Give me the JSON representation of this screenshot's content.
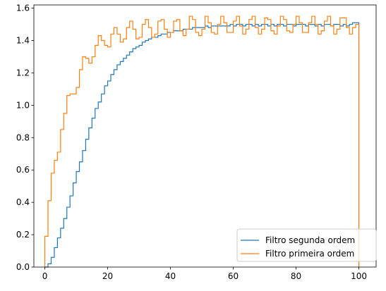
{
  "chart_data": {
    "type": "line",
    "step": true,
    "title": "",
    "xlabel": "",
    "ylabel": "",
    "xlim": [
      -3.5,
      105.5
    ],
    "ylim": [
      0,
      1.62
    ],
    "xticks": [
      0,
      20,
      40,
      60,
      80,
      100
    ],
    "yticks": [
      0.0,
      0.2,
      0.4,
      0.6,
      0.8,
      1.0,
      1.2,
      1.4,
      1.6
    ],
    "xtick_labels": [
      "0",
      "20",
      "40",
      "60",
      "80",
      "100"
    ],
    "ytick_labels": [
      "0.0",
      "0.2",
      "0.4",
      "0.6",
      "0.8",
      "1.0",
      "1.2",
      "1.4",
      "1.6"
    ],
    "grid": false,
    "legend_position": "lower-right",
    "series": [
      {
        "name": "Filtro segunda ordem",
        "color": "#1f77b4",
        "x": [
          0,
          1,
          2,
          3,
          4,
          5,
          6,
          7,
          8,
          9,
          10,
          11,
          12,
          13,
          14,
          15,
          16,
          17,
          18,
          19,
          20,
          21,
          22,
          23,
          24,
          25,
          26,
          27,
          28,
          29,
          30,
          31,
          32,
          33,
          34,
          35,
          36,
          37,
          38,
          39,
          40,
          41,
          42,
          43,
          44,
          45,
          46,
          47,
          48,
          49,
          50,
          51,
          52,
          53,
          54,
          55,
          56,
          57,
          58,
          59,
          60,
          61,
          62,
          63,
          64,
          65,
          66,
          67,
          68,
          69,
          70,
          71,
          72,
          73,
          74,
          75,
          76,
          77,
          78,
          79,
          80,
          81,
          82,
          83,
          84,
          85,
          86,
          87,
          88,
          89,
          90,
          91,
          92,
          93,
          94,
          95,
          96,
          97,
          98,
          99,
          100
        ],
        "y": [
          0.0,
          0.02,
          0.06,
          0.12,
          0.18,
          0.24,
          0.3,
          0.37,
          0.44,
          0.52,
          0.59,
          0.65,
          0.72,
          0.79,
          0.86,
          0.92,
          0.98,
          1.02,
          1.07,
          1.12,
          1.15,
          1.19,
          1.22,
          1.25,
          1.27,
          1.29,
          1.31,
          1.33,
          1.35,
          1.36,
          1.37,
          1.39,
          1.4,
          1.41,
          1.42,
          1.42,
          1.43,
          1.44,
          1.44,
          1.45,
          1.45,
          1.46,
          1.46,
          1.46,
          1.47,
          1.47,
          1.47,
          1.48,
          1.48,
          1.48,
          1.48,
          1.49,
          1.48,
          1.49,
          1.49,
          1.49,
          1.49,
          1.49,
          1.49,
          1.5,
          1.49,
          1.5,
          1.5,
          1.49,
          1.5,
          1.5,
          1.49,
          1.5,
          1.49,
          1.5,
          1.5,
          1.49,
          1.5,
          1.49,
          1.5,
          1.5,
          1.49,
          1.5,
          1.5,
          1.49,
          1.5,
          1.5,
          1.5,
          1.49,
          1.5,
          1.5,
          1.49,
          1.5,
          1.49,
          1.5,
          1.5,
          1.49,
          1.5,
          1.5,
          1.49,
          1.5,
          1.49,
          1.5,
          1.51,
          1.51,
          0.0
        ]
      },
      {
        "name": "Filtro primeira ordem",
        "color": "#ff7f0e",
        "x": [
          0,
          1,
          2,
          3,
          4,
          5,
          6,
          7,
          8,
          9,
          10,
          11,
          12,
          13,
          14,
          15,
          16,
          17,
          18,
          19,
          20,
          21,
          22,
          23,
          24,
          25,
          26,
          27,
          28,
          29,
          30,
          31,
          32,
          33,
          34,
          35,
          36,
          37,
          38,
          39,
          40,
          41,
          42,
          43,
          44,
          45,
          46,
          47,
          48,
          49,
          50,
          51,
          52,
          53,
          54,
          55,
          56,
          57,
          58,
          59,
          60,
          61,
          62,
          63,
          64,
          65,
          66,
          67,
          68,
          69,
          70,
          71,
          72,
          73,
          74,
          75,
          76,
          77,
          78,
          79,
          80,
          81,
          82,
          83,
          84,
          85,
          86,
          87,
          88,
          89,
          90,
          91,
          92,
          93,
          94,
          95,
          96,
          97,
          98,
          99,
          100
        ],
        "y": [
          0.19,
          0.41,
          0.58,
          0.66,
          0.71,
          0.85,
          0.95,
          1.06,
          1.07,
          1.07,
          1.11,
          1.22,
          1.3,
          1.29,
          1.26,
          1.3,
          1.37,
          1.43,
          1.4,
          1.37,
          1.36,
          1.44,
          1.48,
          1.44,
          1.39,
          1.41,
          1.48,
          1.52,
          1.47,
          1.41,
          1.42,
          1.5,
          1.53,
          1.48,
          1.42,
          1.44,
          1.52,
          1.53,
          1.47,
          1.42,
          1.45,
          1.52,
          1.53,
          1.46,
          1.43,
          1.47,
          1.55,
          1.53,
          1.45,
          1.43,
          1.47,
          1.55,
          1.51,
          1.45,
          1.44,
          1.5,
          1.55,
          1.51,
          1.45,
          1.45,
          1.52,
          1.55,
          1.49,
          1.44,
          1.47,
          1.53,
          1.55,
          1.48,
          1.44,
          1.47,
          1.54,
          1.53,
          1.46,
          1.44,
          1.49,
          1.55,
          1.53,
          1.46,
          1.45,
          1.5,
          1.55,
          1.51,
          1.45,
          1.45,
          1.51,
          1.55,
          1.5,
          1.44,
          1.46,
          1.52,
          1.55,
          1.49,
          1.44,
          1.47,
          1.54,
          1.54,
          1.48,
          1.44,
          1.48,
          1.5,
          0.0
        ]
      }
    ]
  }
}
